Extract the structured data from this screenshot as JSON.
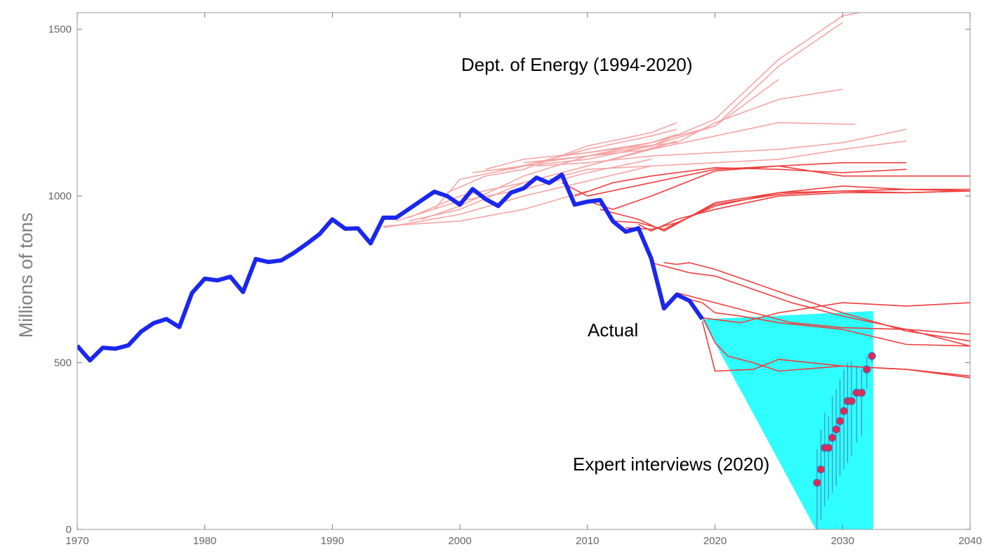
{
  "chart_data": {
    "type": "line",
    "title": "",
    "xlabel": "",
    "ylabel": "Millions of tons",
    "xlim": [
      1970,
      2040
    ],
    "ylim": [
      0,
      1550
    ],
    "x_ticks": [
      1970,
      1980,
      1990,
      2000,
      2010,
      2020,
      2030,
      2040
    ],
    "y_ticks": [
      0,
      500,
      1000,
      1500
    ],
    "grid": false,
    "annotations": [
      {
        "text": "Dept. of Energy (1994-2020)",
        "x": 2000,
        "y": 1390
      },
      {
        "text": "Actual",
        "x": 2010,
        "y": 580
      },
      {
        "text": "Expert interviews (2020)",
        "x": 2009,
        "y": 190
      }
    ],
    "colors": {
      "actual": "#1a27ee",
      "forecast": "#ee3d3d",
      "forecast_early": "#f5a5a5",
      "range": "#2efeff",
      "expert_point": "#ee2448",
      "expert_edge": "#4d6bb8",
      "expert_bar": "#4d7aa8"
    },
    "actual": {
      "name": "Actual",
      "x": [
        1970,
        1971,
        1972,
        1973,
        1974,
        1975,
        1976,
        1977,
        1978,
        1979,
        1980,
        1981,
        1982,
        1983,
        1984,
        1985,
        1986,
        1987,
        1988,
        1989,
        1990,
        1991,
        1992,
        1993,
        1994,
        1995,
        1996,
        1997,
        1998,
        1999,
        2000,
        2001,
        2002,
        2003,
        2004,
        2005,
        2006,
        2007,
        2008,
        2009,
        2010,
        2011,
        2012,
        2013,
        2014,
        2015,
        2016,
        2017,
        2018,
        2019
      ],
      "y": [
        551,
        507,
        545,
        542,
        552,
        593,
        619,
        631,
        607,
        709,
        752,
        747,
        758,
        712,
        811,
        802,
        807,
        830,
        857,
        886,
        930,
        902,
        903,
        858,
        935,
        935,
        961,
        987,
        1013,
        1000,
        974,
        1021,
        991,
        970,
        1010,
        1023,
        1055,
        1039,
        1064,
        974,
        983,
        988,
        924,
        893,
        903,
        813,
        663,
        704,
        686,
        631
      ]
    },
    "forecasts": [
      {
        "x": [
          1994,
          2000,
          2005,
          2010
        ],
        "y": [
          910,
          925,
          960,
          1015
        ]
      },
      {
        "x": [
          1994,
          2000,
          2005,
          2010,
          2015
        ],
        "y": [
          905,
          945,
          1000,
          1045,
          1090
        ]
      },
      {
        "x": [
          1995,
          2000,
          2005,
          2010,
          2015
        ],
        "y": [
          925,
          985,
          1020,
          1070,
          1110
        ]
      },
      {
        "x": [
          1996,
          2000,
          2005,
          2010,
          2017
        ],
        "y": [
          935,
          1000,
          1040,
          1090,
          1165
        ]
      },
      {
        "x": [
          1996,
          2000,
          2005,
          2010,
          2015,
          2017
        ],
        "y": [
          925,
          960,
          1040,
          1090,
          1140,
          1165
        ]
      },
      {
        "x": [
          1997,
          2000,
          2005,
          2010,
          2015,
          2017
        ],
        "y": [
          930,
          970,
          1060,
          1120,
          1160,
          1185
        ]
      },
      {
        "x": [
          1998,
          2000,
          2005,
          2010,
          2015,
          2017
        ],
        "y": [
          960,
          1050,
          1090,
          1140,
          1180,
          1200
        ]
      },
      {
        "x": [
          1999,
          2002,
          2005,
          2010,
          2015,
          2017
        ],
        "y": [
          1010,
          1060,
          1080,
          1150,
          1190,
          1220
        ]
      },
      {
        "x": [
          2001,
          2005,
          2010,
          2015,
          2020,
          2025
        ],
        "y": [
          1070,
          1090,
          1110,
          1150,
          1210,
          1350
        ]
      },
      {
        "x": [
          2002,
          2005,
          2010,
          2015,
          2020,
          2025,
          2030
        ],
        "y": [
          1080,
          1110,
          1130,
          1160,
          1210,
          1390,
          1520
        ]
      },
      {
        "x": [
          2003,
          2006,
          2010,
          2015,
          2020,
          2025,
          2030,
          2032
        ],
        "y": [
          1075,
          1100,
          1120,
          1150,
          1230,
          1410,
          1540,
          1555
        ]
      },
      {
        "x": [
          2004,
          2008,
          2012,
          2017,
          2020,
          2025,
          2030
        ],
        "y": [
          1080,
          1120,
          1140,
          1160,
          1220,
          1290,
          1320
        ]
      },
      {
        "x": [
          2005,
          2010,
          2015,
          2020,
          2025,
          2031
        ],
        "y": [
          1100,
          1120,
          1140,
          1180,
          1220,
          1215
        ]
      },
      {
        "x": [
          2006,
          2010,
          2015,
          2020,
          2025,
          2030,
          2035
        ],
        "y": [
          1090,
          1100,
          1120,
          1130,
          1140,
          1160,
          1200
        ]
      },
      {
        "x": [
          2007,
          2010,
          2015,
          2020,
          2025,
          2030,
          2035
        ],
        "y": [
          1050,
          1080,
          1090,
          1100,
          1110,
          1140,
          1165
        ]
      },
      {
        "x": [
          2008,
          2010,
          2015,
          2020,
          2025,
          2030,
          2035
        ],
        "y": [
          1040,
          1000,
          1040,
          1080,
          1090,
          1100,
          1100
        ]
      },
      {
        "x": [
          2009,
          2012,
          2015,
          2020,
          2025,
          2030,
          2035
        ],
        "y": [
          1000,
          1040,
          1060,
          1085,
          1080,
          1070,
          1080
        ]
      },
      {
        "x": [
          2010,
          2012,
          2015,
          2020,
          2025,
          2030,
          2035,
          2040
        ],
        "y": [
          985,
          960,
          1000,
          1075,
          1090,
          1060,
          1060,
          1060
        ]
      },
      {
        "x": [
          2011,
          2014,
          2016,
          2020,
          2025,
          2030,
          2035,
          2040
        ],
        "y": [
          960,
          930,
          895,
          980,
          1010,
          1030,
          1020,
          1020
        ]
      },
      {
        "x": [
          2012,
          2014,
          2016,
          2020,
          2025,
          2030,
          2035,
          2040
        ],
        "y": [
          925,
          920,
          900,
          975,
          1005,
          1015,
          1010,
          1015
        ]
      },
      {
        "x": [
          2013,
          2015,
          2017,
          2020,
          2025,
          2030,
          2035,
          2040
        ],
        "y": [
          905,
          900,
          920,
          970,
          1010,
          1015,
          1020,
          1015
        ]
      },
      {
        "x": [
          2014,
          2015,
          2017,
          2020,
          2025,
          2030,
          2035,
          2040
        ],
        "y": [
          915,
          895,
          930,
          960,
          1000,
          1010,
          1010,
          1015
        ]
      },
      {
        "x": [
          2015,
          2016,
          2018,
          2020,
          2023,
          2026,
          2030,
          2035,
          2040
        ],
        "y": [
          800,
          790,
          770,
          760,
          720,
          680,
          640,
          600,
          585
        ]
      },
      {
        "x": [
          2016,
          2017,
          2018,
          2020,
          2023,
          2026,
          2030,
          2035,
          2040
        ],
        "y": [
          800,
          795,
          800,
          780,
          740,
          700,
          650,
          595,
          565
        ]
      },
      {
        "x": [
          2017,
          2018,
          2019,
          2020,
          2023,
          2026,
          2030,
          2035,
          2040
        ],
        "y": [
          710,
          700,
          690,
          680,
          650,
          620,
          605,
          600,
          550
        ]
      },
      {
        "x": [
          2018,
          2019,
          2020,
          2022,
          2025,
          2030,
          2035,
          2040
        ],
        "y": [
          690,
          680,
          650,
          640,
          620,
          600,
          555,
          550
        ]
      },
      {
        "x": [
          2019,
          2020,
          2021,
          2023,
          2025,
          2030,
          2035,
          2040
        ],
        "y": [
          640,
          560,
          520,
          500,
          475,
          490,
          480,
          460
        ]
      },
      {
        "x": [
          2019,
          2020,
          2023,
          2025,
          2030,
          2035,
          2040
        ],
        "y": [
          625,
          475,
          480,
          510,
          490,
          480,
          455
        ]
      },
      {
        "x": [
          2019,
          2022,
          2025,
          2030,
          2035,
          2040
        ],
        "y": [
          635,
          620,
          650,
          680,
          670,
          680
        ]
      }
    ],
    "expert_range": {
      "x": [
        2019,
        2032.4,
        2032.4,
        2027.9
      ],
      "y": [
        630,
        655,
        0,
        0
      ]
    },
    "expert_points": [
      {
        "x": 2028.0,
        "y": 140,
        "low": 0,
        "high": 240
      },
      {
        "x": 2028.3,
        "y": 180,
        "low": 30,
        "high": 300
      },
      {
        "x": 2028.6,
        "y": 245,
        "low": 70,
        "high": 350
      },
      {
        "x": 2028.9,
        "y": 245,
        "low": 90,
        "high": 340
      },
      {
        "x": 2029.2,
        "y": 275,
        "low": 110,
        "high": 400
      },
      {
        "x": 2029.5,
        "y": 300,
        "low": 130,
        "high": 420
      },
      {
        "x": 2029.8,
        "y": 325,
        "low": 160,
        "high": 450
      },
      {
        "x": 2030.1,
        "y": 355,
        "low": 180,
        "high": 480
      },
      {
        "x": 2030.4,
        "y": 385,
        "low": 200,
        "high": 500
      },
      {
        "x": 2030.7,
        "y": 385,
        "low": 220,
        "high": 505
      },
      {
        "x": 2031.1,
        "y": 410,
        "low": 260,
        "high": 490
      },
      {
        "x": 2031.5,
        "y": 410,
        "low": 280,
        "high": 480
      },
      {
        "x": 2031.9,
        "y": 480,
        "low": 420,
        "high": 520
      },
      {
        "x": 2032.3,
        "y": 520,
        "low": 500,
        "high": 530
      }
    ]
  }
}
